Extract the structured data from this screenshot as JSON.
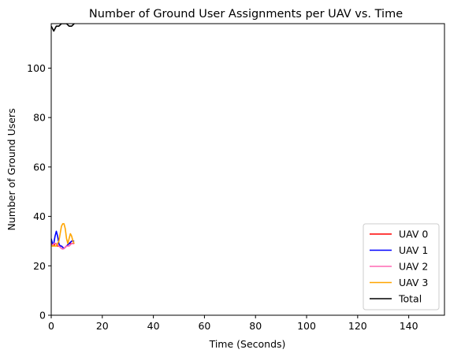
{
  "chart_data": {
    "type": "line",
    "title": "Number of Ground User Assignments per UAV vs. Time",
    "xlabel": "Time (Seconds)",
    "ylabel": "Number of Ground Users",
    "xlim": [
      0,
      154
    ],
    "ylim": [
      0,
      118
    ],
    "xticks": [
      0,
      20,
      40,
      60,
      80,
      100,
      120,
      140
    ],
    "yticks": [
      0,
      20,
      40,
      60,
      80,
      100
    ],
    "grid": false,
    "legend_position": "lower right",
    "series": [
      {
        "name": "UAV 0",
        "color": "#ff0000",
        "x": [
          0,
          0.5,
          1,
          1.5,
          2,
          2.5,
          3,
          4,
          5,
          6,
          7,
          8,
          9
        ],
        "y": [
          29,
          28,
          28,
          29,
          29,
          28,
          28,
          28,
          27,
          28,
          29,
          29,
          29
        ]
      },
      {
        "name": "UAV 1",
        "color": "#0000ff",
        "x": [
          0,
          0.5,
          1,
          1.5,
          2,
          2.5,
          3,
          3.5,
          4,
          5,
          6,
          7,
          8,
          9
        ],
        "y": [
          31,
          29,
          29,
          32,
          34,
          32,
          29,
          28,
          28,
          27,
          28,
          29,
          30,
          30
        ]
      },
      {
        "name": "UAV 2",
        "color": "#ff69b4",
        "x": [
          0,
          1,
          2,
          3,
          4,
          4.5,
          5,
          6,
          7,
          8,
          9
        ],
        "y": [
          28,
          29,
          29,
          28,
          27,
          26.8,
          27,
          28,
          28,
          29,
          29
        ]
      },
      {
        "name": "UAV 3",
        "color": "#ffa500",
        "x": [
          0,
          1,
          2,
          3,
          3.5,
          4,
          4.5,
          5,
          5.5,
          6,
          6.5,
          7,
          7.5,
          8,
          8.5,
          9
        ],
        "y": [
          28,
          28,
          28,
          30,
          33,
          36,
          37,
          37,
          35,
          31,
          29,
          31,
          33,
          32,
          30,
          29
        ]
      },
      {
        "name": "Total",
        "color": "#000000",
        "x": [
          0,
          1,
          2,
          3,
          4,
          5,
          6,
          7,
          8,
          9
        ],
        "y": [
          117,
          115,
          117,
          117,
          118,
          118,
          118,
          117,
          117,
          118
        ]
      }
    ]
  }
}
